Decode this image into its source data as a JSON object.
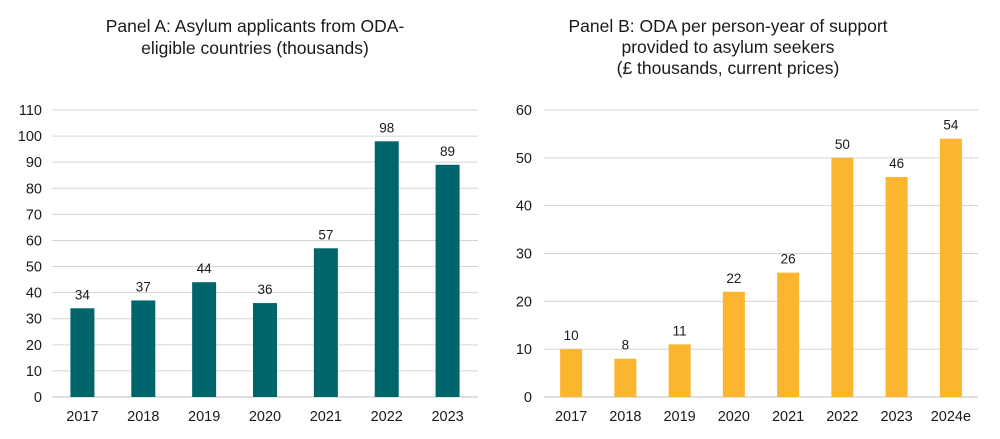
{
  "chart_data": [
    {
      "type": "bar",
      "title_lines": [
        "Panel A: Asylum applicants from ODA-",
        "eligible countries (thousands)"
      ],
      "categories": [
        "2017",
        "2018",
        "2019",
        "2020",
        "2021",
        "2022",
        "2023"
      ],
      "values": [
        34,
        37,
        44,
        36,
        57,
        98,
        89
      ],
      "value_labels": [
        "34",
        "37",
        "44",
        "36",
        "57",
        "98",
        "89"
      ],
      "ylim": [
        0,
        110
      ],
      "yticks": [
        0,
        10,
        20,
        30,
        40,
        50,
        60,
        70,
        80,
        90,
        100,
        110
      ],
      "ytick_labels": [
        "0",
        "10",
        "20",
        "30",
        "40",
        "50",
        "60",
        "70",
        "80",
        "90",
        "100",
        "110"
      ],
      "xlabel": "",
      "ylabel": "",
      "grid": true,
      "color": "#00656A"
    },
    {
      "type": "bar",
      "title_lines": [
        "Panel B: ODA per person-year of support",
        "provided to asylum seekers",
        "(£ thousands, current prices)"
      ],
      "categories": [
        "2017",
        "2018",
        "2019",
        "2020",
        "2021",
        "2022",
        "2023",
        "2024e"
      ],
      "values": [
        10,
        8,
        11,
        22,
        26,
        50,
        46,
        54
      ],
      "value_labels": [
        "10",
        "8",
        "11",
        "22",
        "26",
        "50",
        "46",
        "54"
      ],
      "ylim": [
        0,
        60
      ],
      "yticks": [
        0,
        10,
        20,
        30,
        40,
        50,
        60
      ],
      "ytick_labels": [
        "0",
        "10",
        "20",
        "30",
        "40",
        "50",
        "60"
      ],
      "xlabel": "",
      "ylabel": "",
      "grid": true,
      "color": "#FBB52F"
    }
  ]
}
